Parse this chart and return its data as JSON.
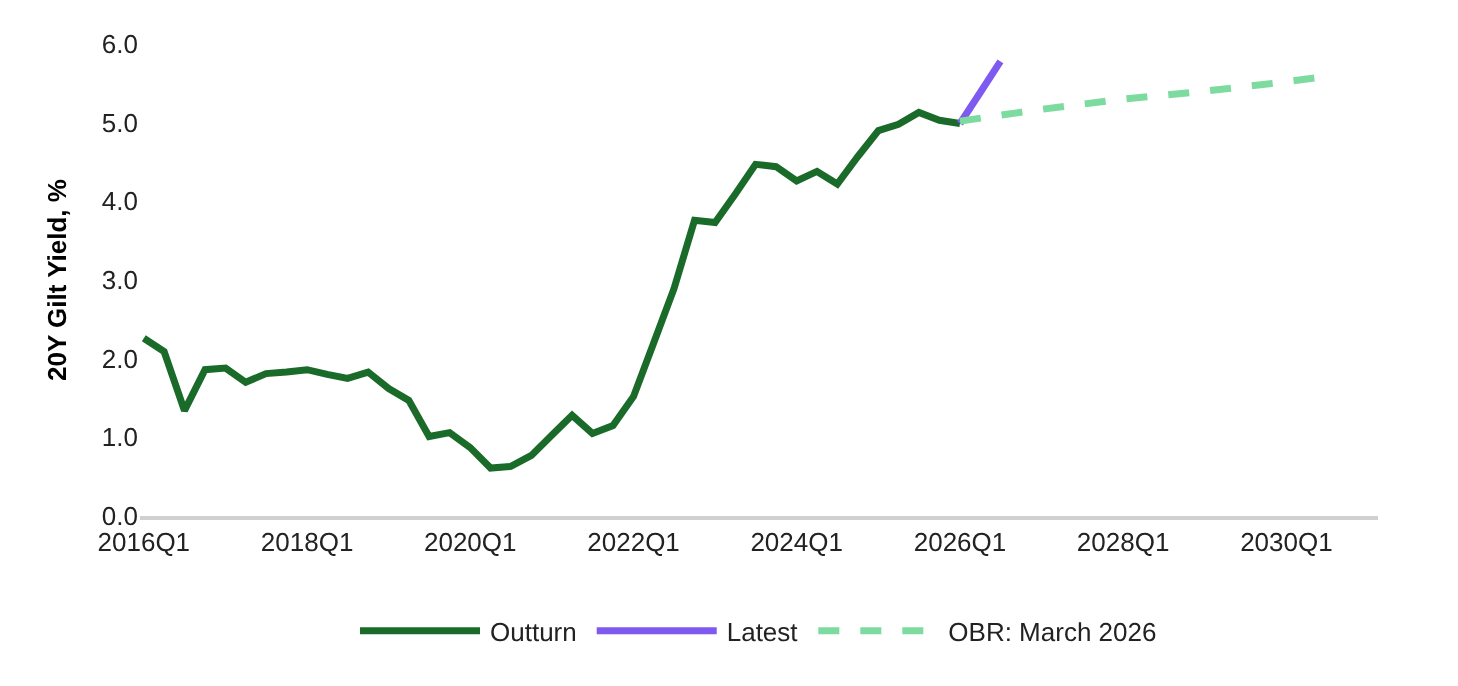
{
  "chart_data": {
    "type": "line",
    "ylabel": "20Y Gilt Yield, %",
    "xlim": [
      "2015-12-15",
      "2031-02-15"
    ],
    "xticks": [
      {
        "value": "2016-01",
        "label": "2016Q1"
      },
      {
        "value": "2018-01",
        "label": "2018Q1"
      },
      {
        "value": "2020-01",
        "label": "2020Q1"
      },
      {
        "value": "2022-01",
        "label": "2022Q1"
      },
      {
        "value": "2024-01",
        "label": "2024Q1"
      },
      {
        "value": "2026-01",
        "label": "2026Q1"
      },
      {
        "value": "2028-01",
        "label": "2028Q1"
      },
      {
        "value": "2030-01",
        "label": "2030Q1"
      }
    ],
    "ylim": [
      0,
      6
    ],
    "yticks": [
      {
        "value": 0,
        "label": "0.0"
      },
      {
        "value": 1,
        "label": "1.0"
      },
      {
        "value": 2,
        "label": "2.0"
      },
      {
        "value": 3,
        "label": "3.0"
      },
      {
        "value": 4,
        "label": "4.0"
      },
      {
        "value": 5,
        "label": "5.0"
      },
      {
        "value": 6,
        "label": "6.0"
      }
    ],
    "grid": false,
    "legend": "bottom",
    "series": [
      {
        "name": "Outturn",
        "color": "#1a6b2a",
        "line_style": "solid",
        "x": [
          "2016-01",
          "2016-04",
          "2016-07",
          "2016-10",
          "2017-01",
          "2017-04",
          "2017-07",
          "2017-10",
          "2018-01",
          "2018-04",
          "2018-07",
          "2018-10",
          "2019-01",
          "2019-04",
          "2019-07",
          "2019-10",
          "2020-01",
          "2020-04",
          "2020-07",
          "2020-10",
          "2021-01",
          "2021-04",
          "2021-07",
          "2021-10",
          "2022-01",
          "2022-04",
          "2022-07",
          "2022-10",
          "2023-01",
          "2023-04",
          "2023-07",
          "2023-10",
          "2024-01",
          "2024-04",
          "2024-07",
          "2024-10",
          "2025-01",
          "2025-04",
          "2025-07",
          "2025-10",
          "2026-01"
        ],
        "values": [
          2.26,
          2.09,
          1.34,
          1.86,
          1.88,
          1.7,
          1.81,
          1.83,
          1.86,
          1.8,
          1.75,
          1.83,
          1.62,
          1.47,
          1.01,
          1.06,
          0.87,
          0.61,
          0.63,
          0.77,
          1.03,
          1.28,
          1.05,
          1.15,
          1.52,
          2.2,
          2.89,
          3.76,
          3.73,
          4.09,
          4.47,
          4.44,
          4.26,
          4.38,
          4.22,
          4.57,
          4.9,
          4.98,
          5.13,
          5.03,
          4.99
        ]
      },
      {
        "name": "Latest",
        "color": "#7f5af0",
        "line_style": "solid",
        "x": [
          "2026-01",
          "2026-04",
          "2026-07"
        ],
        "values": [
          4.99,
          5.38,
          5.78
        ]
      },
      {
        "name": "OBR: March 2026",
        "color": "#7ddba0",
        "line_style": "dashed",
        "x": [
          "2026-01",
          "2027-01",
          "2028-01",
          "2029-01",
          "2030-01",
          "2030-07"
        ],
        "values": [
          5.02,
          5.17,
          5.3,
          5.4,
          5.52,
          5.59
        ]
      }
    ]
  }
}
